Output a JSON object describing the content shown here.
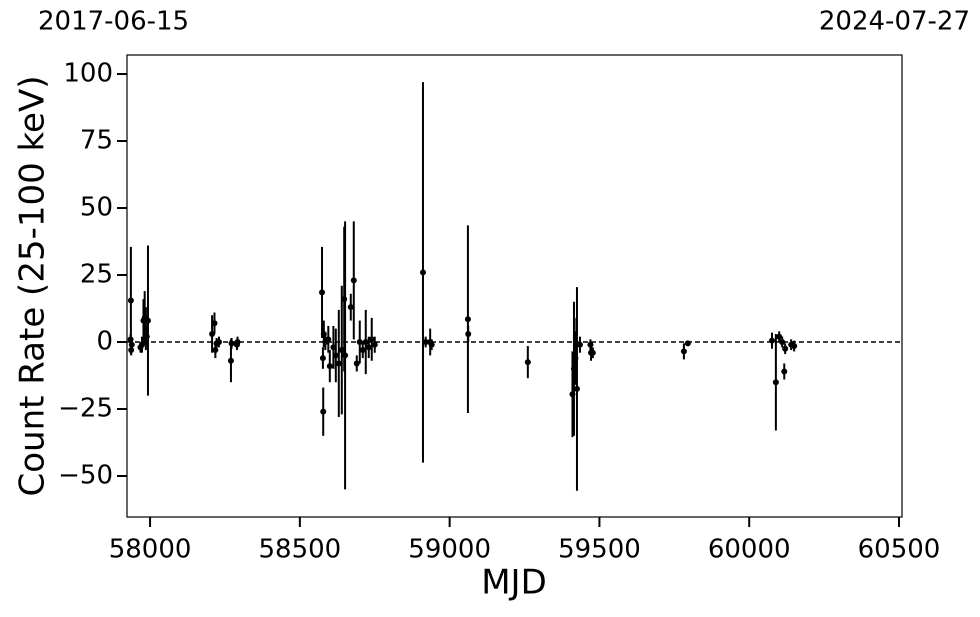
{
  "chart_data": {
    "type": "scatter",
    "annotations": [
      "2017-06-15",
      "2024-07-27"
    ],
    "xlabel": "MJD",
    "ylabel": "Count Rate (25-100 keV)",
    "color": "#000000",
    "hline": 0,
    "hline_style": "dashed",
    "xlim": [
      57923,
      60510
    ],
    "ylim": [
      -65.3,
      107.1
    ],
    "xticks": [
      58000,
      58500,
      59000,
      59500,
      60000,
      60500
    ],
    "yticks": [
      {
        "value": -50,
        "label": "−50"
      },
      {
        "value": -25,
        "label": "−25"
      },
      0,
      25,
      50,
      75,
      100
    ],
    "x": [
      57936,
      57935,
      57937,
      57939,
      57968,
      57973,
      57978,
      57982,
      57986,
      57989,
      57993,
      58207,
      58215,
      58218,
      58222,
      58230,
      58270,
      58272,
      58290,
      58292,
      58574,
      58578,
      58577,
      58580,
      58585,
      58595,
      58600,
      58612,
      58620,
      58630,
      58640,
      58648,
      58651,
      58670,
      58680,
      58690,
      58700,
      58710,
      58720,
      58730,
      58740,
      58750,
      58911,
      58920,
      58935,
      58940,
      59061,
      59062,
      59261,
      59410,
      59415,
      59420,
      59423,
      59425,
      59435,
      59470,
      59472,
      59478,
      59782,
      59795,
      60076,
      60089,
      60100,
      60110,
      60117,
      60120,
      60140,
      60150
    ],
    "values": [
      15.5,
      1,
      -3,
      -1,
      -2,
      -1,
      8,
      9,
      5,
      2,
      8,
      3,
      7,
      -3,
      -0.5,
      0,
      -7,
      -0.5,
      -1,
      0,
      18.5,
      -26,
      -6,
      3,
      0,
      1,
      -9,
      -2,
      -5,
      -8,
      -3,
      16,
      -5,
      13,
      23,
      -8,
      0,
      -3,
      0,
      -2,
      1,
      -1,
      26,
      0,
      0,
      -1,
      8.5,
      3,
      -7.5,
      -19.5,
      -10,
      -6,
      -1,
      -17.5,
      -1,
      -1,
      -4,
      -4,
      -3.5,
      -0.5,
      0.5,
      -15,
      2,
      0,
      -11,
      -2.5,
      -1,
      -1.5
    ],
    "errors": [
      20,
      2,
      2,
      2,
      2,
      3,
      8,
      10,
      8,
      3,
      28,
      7,
      4,
      3,
      2,
      2,
      8,
      2,
      2,
      2,
      17,
      9,
      4,
      5,
      3,
      5,
      6,
      8,
      10,
      20,
      24,
      27,
      50,
      5,
      22,
      3,
      8,
      3,
      12,
      4,
      8,
      3,
      71,
      2,
      5,
      2,
      35,
      3,
      6,
      16,
      25,
      10,
      10,
      38,
      3,
      2,
      3,
      2,
      3,
      1,
      3,
      18,
      2,
      2,
      3,
      2,
      2,
      2
    ]
  }
}
